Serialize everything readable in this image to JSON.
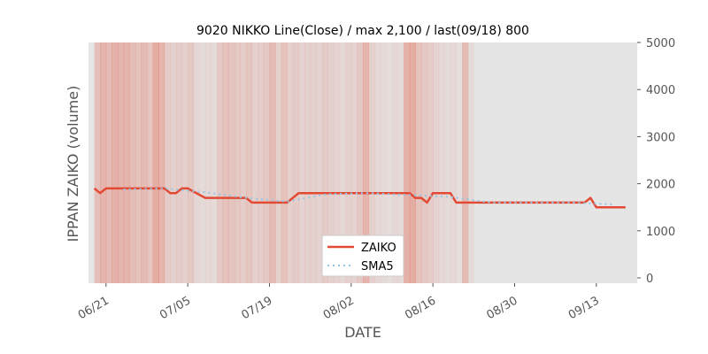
{
  "chart_data": {
    "type": "line",
    "title": "9020 NIKKO Line(Close) / max 2,100 / last(09/18) 800",
    "xlabel": "DATE",
    "ylabel": "IPPAN ZAIKO (volume)",
    "ylim": [
      0,
      5000
    ],
    "yticks": [
      0,
      1000,
      2000,
      3000,
      4000,
      5000
    ],
    "xlim": [
      "2024-06-18",
      "2024-09-20"
    ],
    "xticks": [
      {
        "date": "2024-06-21",
        "label": "06/21"
      },
      {
        "date": "2024-07-05",
        "label": "07/05"
      },
      {
        "date": "2024-07-19",
        "label": "07/19"
      },
      {
        "date": "2024-08-02",
        "label": "08/02"
      },
      {
        "date": "2024-08-16",
        "label": "08/16"
      },
      {
        "date": "2024-08-30",
        "label": "08/30"
      },
      {
        "date": "2024-09-13",
        "label": "09/13"
      }
    ],
    "grid": false,
    "legend_position": "bottom-center",
    "background_shading": true,
    "colors": {
      "zaiko": "#e24a33",
      "sma5": "#92c6e8",
      "shade": "#e24a33"
    },
    "series": [
      {
        "name": "ZAIKO",
        "style": "solid",
        "points": [
          [
            "2024-06-19",
            1900
          ],
          [
            "2024-06-20",
            1800
          ],
          [
            "2024-06-21",
            1900
          ],
          [
            "2024-06-24",
            1900
          ],
          [
            "2024-06-25",
            1900
          ],
          [
            "2024-06-26",
            1900
          ],
          [
            "2024-06-27",
            1900
          ],
          [
            "2024-06-28",
            1900
          ],
          [
            "2024-07-01",
            1900
          ],
          [
            "2024-07-02",
            1800
          ],
          [
            "2024-07-03",
            1800
          ],
          [
            "2024-07-04",
            1900
          ],
          [
            "2024-07-05",
            1900
          ],
          [
            "2024-07-08",
            1700
          ],
          [
            "2024-07-09",
            1700
          ],
          [
            "2024-07-10",
            1700
          ],
          [
            "2024-07-11",
            1700
          ],
          [
            "2024-07-12",
            1700
          ],
          [
            "2024-07-15",
            1700
          ],
          [
            "2024-07-16",
            1600
          ],
          [
            "2024-07-17",
            1600
          ],
          [
            "2024-07-18",
            1600
          ],
          [
            "2024-07-19",
            1600
          ],
          [
            "2024-07-22",
            1600
          ],
          [
            "2024-07-23",
            1700
          ],
          [
            "2024-07-24",
            1800
          ],
          [
            "2024-07-25",
            1800
          ],
          [
            "2024-07-26",
            1800
          ],
          [
            "2024-07-29",
            1800
          ],
          [
            "2024-07-30",
            1800
          ],
          [
            "2024-07-31",
            1800
          ],
          [
            "2024-08-01",
            1800
          ],
          [
            "2024-08-02",
            1800
          ],
          [
            "2024-08-05",
            1800
          ],
          [
            "2024-08-06",
            1800
          ],
          [
            "2024-08-07",
            1800
          ],
          [
            "2024-08-08",
            1800
          ],
          [
            "2024-08-09",
            1800
          ],
          [
            "2024-08-12",
            1800
          ],
          [
            "2024-08-13",
            1700
          ],
          [
            "2024-08-14",
            1700
          ],
          [
            "2024-08-15",
            1600
          ],
          [
            "2024-08-16",
            1800
          ],
          [
            "2024-08-19",
            1800
          ],
          [
            "2024-08-20",
            1600
          ],
          [
            "2024-08-21",
            1600
          ],
          [
            "2024-08-22",
            1600
          ],
          [
            "2024-08-23",
            1600
          ],
          [
            "2024-08-26",
            1600
          ],
          [
            "2024-08-27",
            1600
          ],
          [
            "2024-08-28",
            1600
          ],
          [
            "2024-08-29",
            1600
          ],
          [
            "2024-08-30",
            1600
          ],
          [
            "2024-09-02",
            1600
          ],
          [
            "2024-09-03",
            1600
          ],
          [
            "2024-09-04",
            1600
          ],
          [
            "2024-09-05",
            1600
          ],
          [
            "2024-09-06",
            1600
          ],
          [
            "2024-09-09",
            1600
          ],
          [
            "2024-09-10",
            1600
          ],
          [
            "2024-09-11",
            1600
          ],
          [
            "2024-09-12",
            1700
          ],
          [
            "2024-09-13",
            1500
          ],
          [
            "2024-09-16",
            1500
          ],
          [
            "2024-09-17",
            1500
          ],
          [
            "2024-09-18",
            1500
          ]
        ]
      },
      {
        "name": "SMA5",
        "style": "dotted",
        "points": [
          [
            "2024-06-24",
            1880
          ],
          [
            "2024-07-01",
            1900
          ],
          [
            "2024-07-08",
            1820
          ],
          [
            "2024-07-15",
            1700
          ],
          [
            "2024-07-22",
            1620
          ],
          [
            "2024-07-29",
            1780
          ],
          [
            "2024-08-05",
            1800
          ],
          [
            "2024-08-12",
            1760
          ],
          [
            "2024-08-19",
            1720
          ],
          [
            "2024-08-26",
            1600
          ],
          [
            "2024-09-02",
            1600
          ],
          [
            "2024-09-09",
            1600
          ],
          [
            "2024-09-16",
            1560
          ]
        ]
      }
    ]
  }
}
